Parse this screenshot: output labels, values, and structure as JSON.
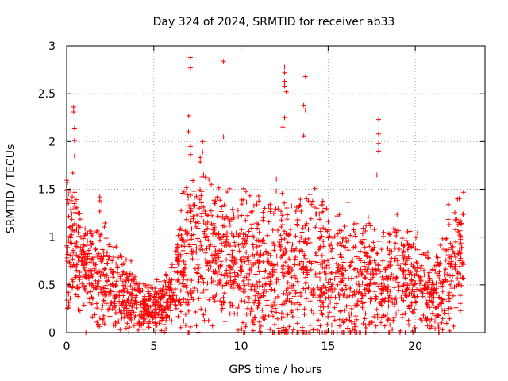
{
  "chart_data": {
    "type": "scatter",
    "title": "Day 324 of 2024, SRMTID for receiver ab33",
    "xlabel": "GPS time / hours",
    "ylabel": "SRMTID / TECUs",
    "xlim": [
      0,
      24
    ],
    "ylim": [
      0,
      3
    ],
    "x_ticks": [
      0,
      5,
      10,
      15,
      20
    ],
    "x_tick_labels": [
      "0",
      "5",
      "10",
      "15",
      "20"
    ],
    "y_ticks": [
      0,
      0.5,
      1,
      1.5,
      2,
      2.5,
      3
    ],
    "y_tick_labels": [
      "0",
      "0.5",
      "1",
      "1.5",
      "2",
      "2.5",
      "3"
    ],
    "grid": true,
    "marker": "+",
    "series": [
      {
        "name": "SRMTID",
        "color": "#ff0000",
        "envelope": {
          "description": "approximate spread of plotted points per hour (estimated)",
          "hours": [
            0,
            0.5,
            1,
            1.5,
            2,
            2.5,
            3,
            3.5,
            4,
            4.5,
            5,
            5.5,
            6,
            6.5,
            7,
            7.5,
            8,
            8.5,
            9,
            9.5,
            10,
            10.5,
            11,
            11.5,
            12,
            12.5,
            13,
            13.5,
            14,
            14.5,
            15,
            15.5,
            16,
            16.5,
            17,
            17.5,
            18,
            18.5,
            19,
            19.5,
            20,
            20.5,
            21,
            21.5,
            22,
            22.5,
            22.8
          ],
          "typical": [
            0.95,
            0.85,
            0.7,
            0.6,
            0.55,
            0.45,
            0.42,
            0.38,
            0.33,
            0.28,
            0.27,
            0.3,
            0.36,
            0.6,
            0.8,
            0.9,
            0.85,
            0.75,
            0.85,
            0.8,
            0.75,
            0.7,
            0.65,
            0.65,
            0.65,
            0.65,
            0.6,
            0.62,
            0.7,
            0.7,
            0.55,
            0.5,
            0.5,
            0.45,
            0.5,
            0.5,
            0.45,
            0.45,
            0.5,
            0.5,
            0.55,
            0.45,
            0.35,
            0.5,
            0.6,
            0.8,
            0.95
          ],
          "low": [
            0.4,
            0.4,
            0.35,
            0.3,
            0.3,
            0.25,
            0.2,
            0.15,
            0.12,
            0.12,
            0.12,
            0.12,
            0.15,
            0.25,
            0.3,
            0.35,
            0.3,
            0.25,
            0.3,
            0.25,
            0.25,
            0.1,
            0.1,
            0.1,
            0.1,
            0.05,
            0.1,
            0.1,
            0.1,
            0.1,
            0.05,
            0.05,
            0.05,
            0.05,
            0.05,
            0.05,
            0.05,
            0.05,
            0.05,
            0.1,
            0.1,
            0.15,
            0.15,
            0.15,
            0.2,
            0.3,
            0.45
          ],
          "high": [
            1.5,
            1.3,
            1.0,
            0.95,
            1.3,
            0.85,
            0.8,
            0.7,
            0.65,
            0.55,
            0.5,
            0.55,
            0.65,
            1.05,
            1.9,
            1.7,
            1.5,
            1.3,
            1.4,
            1.3,
            1.5,
            1.3,
            1.2,
            1.3,
            1.45,
            1.4,
            1.2,
            1.5,
            1.55,
            1.4,
            1.1,
            1.1,
            1.3,
            1.0,
            1.25,
            1.0,
            0.95,
            1.0,
            1.1,
            0.95,
            0.95,
            0.8,
            0.7,
            0.95,
            1.25,
            1.3,
            1.2
          ]
        },
        "notable_points": [
          {
            "x": 0.05,
            "y": 1.57
          },
          {
            "x": 0.1,
            "y": 1.45
          },
          {
            "x": 0.4,
            "y": 2.36
          },
          {
            "x": 0.4,
            "y": 2.31
          },
          {
            "x": 0.45,
            "y": 2.14
          },
          {
            "x": 0.45,
            "y": 2.01
          },
          {
            "x": 0.45,
            "y": 1.85
          },
          {
            "x": 0.35,
            "y": 1.67
          },
          {
            "x": 1.9,
            "y": 1.42
          },
          {
            "x": 1.9,
            "y": 1.38
          },
          {
            "x": 1.9,
            "y": 1.27
          },
          {
            "x": 7.0,
            "y": 2.27
          },
          {
            "x": 7.1,
            "y": 2.88
          },
          {
            "x": 7.1,
            "y": 2.77
          },
          {
            "x": 7.1,
            "y": 1.95
          },
          {
            "x": 7.8,
            "y": 2.0
          },
          {
            "x": 7.8,
            "y": 1.89
          },
          {
            "x": 9.0,
            "y": 2.84
          },
          {
            "x": 9.0,
            "y": 2.05
          },
          {
            "x": 12.5,
            "y": 2.78
          },
          {
            "x": 12.5,
            "y": 2.72
          },
          {
            "x": 12.5,
            "y": 2.63
          },
          {
            "x": 12.5,
            "y": 2.58
          },
          {
            "x": 12.6,
            "y": 2.52
          },
          {
            "x": 12.5,
            "y": 2.25
          },
          {
            "x": 12.4,
            "y": 2.15
          },
          {
            "x": 13.7,
            "y": 2.68
          },
          {
            "x": 13.6,
            "y": 2.38
          },
          {
            "x": 13.7,
            "y": 2.33
          },
          {
            "x": 13.6,
            "y": 2.06
          },
          {
            "x": 17.9,
            "y": 2.23
          },
          {
            "x": 17.9,
            "y": 2.08
          },
          {
            "x": 17.9,
            "y": 1.98
          },
          {
            "x": 17.9,
            "y": 1.9
          },
          {
            "x": 17.8,
            "y": 1.65
          },
          {
            "x": 1.1,
            "y": 0.0
          },
          {
            "x": 5.1,
            "y": 0.0
          },
          {
            "x": 10.7,
            "y": 0.02
          },
          {
            "x": 13.3,
            "y": 0.0
          },
          {
            "x": 13.5,
            "y": 0.02
          },
          {
            "x": 14.5,
            "y": 0.0
          },
          {
            "x": 15.2,
            "y": 0.0
          },
          {
            "x": 16.5,
            "y": 0.03
          }
        ]
      }
    ]
  }
}
